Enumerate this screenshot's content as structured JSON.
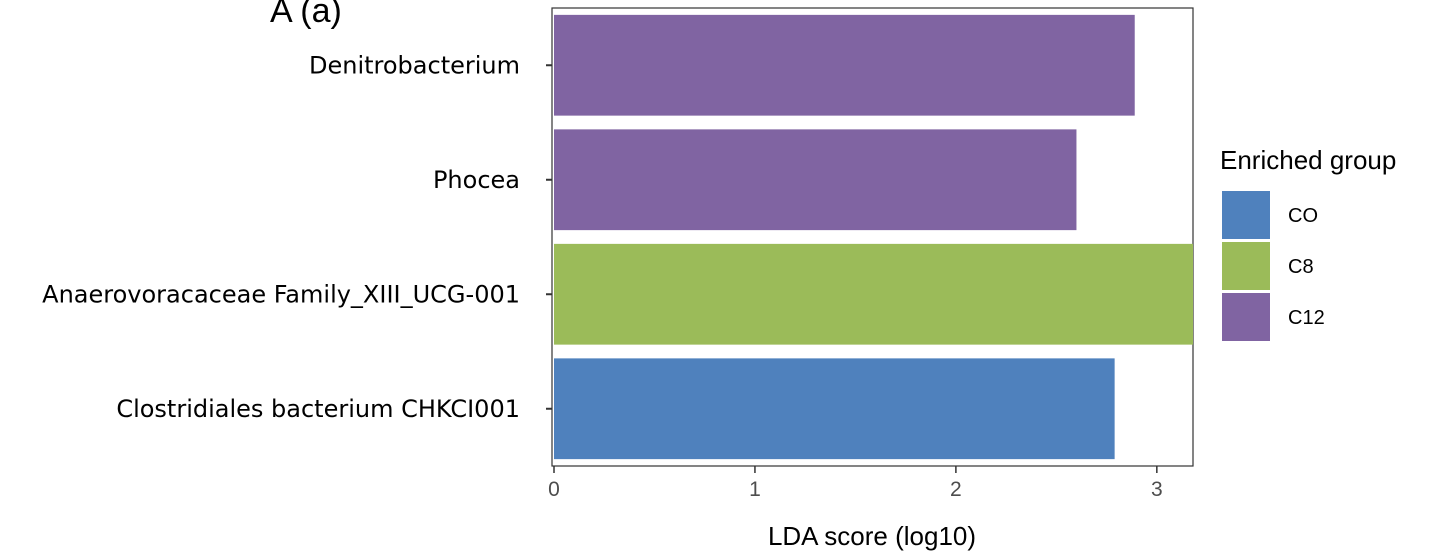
{
  "panel_label": "A (a)",
  "chart_data": {
    "type": "bar",
    "orientation": "horizontal",
    "categories": [
      "Denitrobacterium",
      "Phocea",
      "Anaerovoracaceae Family_XIII_UCG-001",
      "Clostridiales bacterium CHKCI001"
    ],
    "values": [
      2.89,
      2.6,
      3.18,
      2.79
    ],
    "groups": [
      "C12",
      "C12",
      "C8",
      "CO"
    ],
    "xlabel": "LDA score (log10)",
    "ylabel": "",
    "xlim": [
      0,
      3.18
    ],
    "xticks": [
      "0",
      "1",
      "2",
      "3"
    ],
    "grid": false,
    "legend": {
      "title": "Enriched group",
      "placement": "right",
      "items": [
        {
          "name": "CO",
          "color": "#4f81bd"
        },
        {
          "name": "C8",
          "color": "#9bbb59"
        },
        {
          "name": "C12",
          "color": "#8064a2"
        }
      ]
    }
  }
}
